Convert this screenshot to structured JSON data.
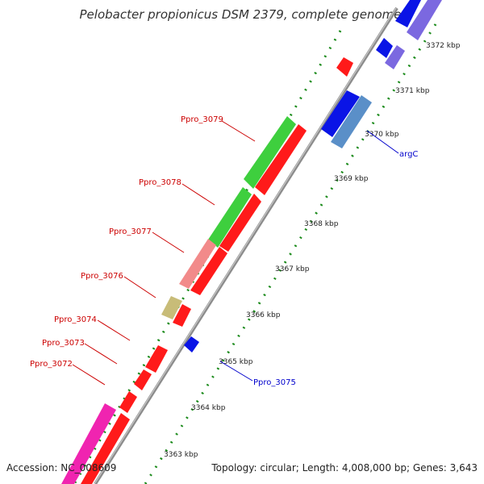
{
  "title": "Pelobacter propionicus DSM 2379, complete genome",
  "accession_text": "Accession: NC_008609",
  "topology_text": "Topology: circular; Length: 4,008,000 bp; Genes: 3,643",
  "colors": {
    "backbone": "#8c8c8c",
    "dots": "#1a8a1a",
    "red": "#ff1a1a",
    "blue": "#0a14e6",
    "lavender": "#7b68e0",
    "steel": "#5a8fc8",
    "green": "#3ecf3e",
    "pink": "#f28a8a",
    "khaki": "#c8bc78",
    "magenta": "#f024b0",
    "label_red": "#cc0000",
    "label_blue": "#0000cc"
  },
  "kbp_ticks": [
    "3372 kbp",
    "3371 kbp",
    "3370 kbp",
    "3369 kbp",
    "3368 kbp",
    "3367 kbp",
    "3366 kbp",
    "3365 kbp",
    "3364 kbp",
    "3363 kbp"
  ],
  "gene_labels_left": [
    "Ppro_3079",
    "Ppro_3078",
    "Ppro_3077",
    "Ppro_3076",
    "Ppro_3074",
    "Ppro_3073",
    "Ppro_3072"
  ],
  "gene_labels_right": [
    "argC",
    "Ppro_3075"
  ],
  "genes": [
    {
      "track": "outer",
      "color": "blue",
      "from": 0.0,
      "to": 28.0,
      "dir": "up"
    },
    {
      "track": "outer",
      "color": "lavender",
      "from": 0.0,
      "to": 20.0,
      "dir": "up"
    },
    {
      "track": "outer",
      "color": "blue",
      "from": 42.0,
      "to": 52.0,
      "dir": "up"
    },
    {
      "track": "outer",
      "color": "lavender",
      "from": 52.0,
      "to": 68.0,
      "dir": "up"
    },
    {
      "track": "outer",
      "color": "red",
      "from": 72.0,
      "to": 82.0,
      "dir": "up"
    },
    {
      "track": "outer",
      "color": "blue",
      "from": 110.0,
      "to": 140.0,
      "dir": "up"
    },
    {
      "track": "outer",
      "color": "steel",
      "from": 118.0,
      "to": 155.0,
      "dir": "up"
    },
    {
      "track": "outer",
      "color": "red",
      "from": 160.0,
      "to": 255.0,
      "dir": "up"
    },
    {
      "track": "outer",
      "color": "green",
      "from": 152.0,
      "to": 235.0,
      "dir": "up"
    },
    {
      "track": "outer",
      "color": "red",
      "from": 243.0,
      "to": 310.0,
      "dir": "up"
    },
    {
      "track": "outer",
      "color": "green",
      "from": 230.0,
      "to": 295.0,
      "dir": "up"
    },
    {
      "track": "outer",
      "color": "red",
      "from": 312.0,
      "to": 370.0,
      "dir": "up"
    },
    {
      "track": "outer",
      "color": "pink",
      "from": 295.0,
      "to": 355.0,
      "dir": "up"
    },
    {
      "track": "outer",
      "color": "khaki",
      "from": 365.0,
      "to": 392.0,
      "dir": "up"
    },
    {
      "track": "outer",
      "color": "red",
      "from": 376.0,
      "to": 398.0,
      "dir": "up"
    },
    {
      "track": "outer",
      "color": "blue",
      "from": 420.0,
      "to": 434.0,
      "dir": "up"
    },
    {
      "track": "outer",
      "color": "red",
      "from": 428.0,
      "to": 458.0,
      "dir": "up"
    },
    {
      "track": "outer",
      "color": "red",
      "from": 460.0,
      "to": 480.0,
      "dir": "up"
    },
    {
      "track": "outer",
      "color": "red",
      "from": 484.0,
      "to": 505.0,
      "dir": "up"
    },
    {
      "track": "outer",
      "color": "red",
      "from": 510.0,
      "to": 600.0,
      "dir": "up"
    },
    {
      "track": "outer",
      "color": "magenta",
      "from": 500.0,
      "to": 600.0,
      "dir": "up"
    }
  ]
}
